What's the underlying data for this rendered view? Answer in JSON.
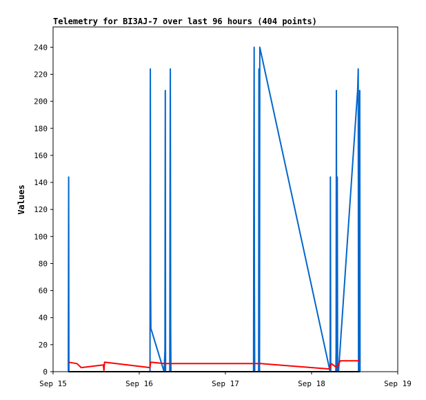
{
  "chart_data": {
    "type": "line",
    "title": "Telemetry for BI3AJ-7 over last 96 hours (404 points)",
    "xlabel": "",
    "ylabel": "Values",
    "xlim": [
      "2023-09-15T00:00",
      "2023-09-19T00:00"
    ],
    "ylim": [
      0,
      255
    ],
    "x_tick_labels": [
      "Sep 15",
      "Sep 16",
      "Sep 17",
      "Sep 18",
      "Sep 19"
    ],
    "y_ticks": [
      0,
      20,
      40,
      60,
      80,
      100,
      120,
      140,
      160,
      180,
      200,
      220,
      240
    ],
    "grid": false,
    "legend": false,
    "series": [
      {
        "color": "#0066cc",
        "points": [
          [
            "2023-09-15T04:15",
            0
          ],
          [
            "2023-09-15T04:20",
            144
          ],
          [
            "2023-09-15T04:25",
            0
          ],
          [
            "2023-09-16T03:00",
            0
          ],
          [
            "2023-09-16T03:05",
            224
          ],
          [
            "2023-09-16T03:10",
            64
          ],
          [
            "2023-09-16T03:15",
            32
          ],
          [
            "2023-09-16T06:55",
            0
          ],
          [
            "2023-09-16T07:10",
            16
          ],
          [
            "2023-09-16T07:15",
            208
          ],
          [
            "2023-09-16T07:20",
            0
          ],
          [
            "2023-09-16T08:30",
            0
          ],
          [
            "2023-09-16T08:35",
            128
          ],
          [
            "2023-09-16T08:40",
            224
          ],
          [
            "2023-09-16T08:45",
            32
          ],
          [
            "2023-09-16T08:50",
            0
          ],
          [
            "2023-09-17T07:50",
            0
          ],
          [
            "2023-09-17T07:55",
            128
          ],
          [
            "2023-09-17T08:00",
            240
          ],
          [
            "2023-09-17T08:05",
            64
          ],
          [
            "2023-09-17T08:10",
            0
          ],
          [
            "2023-09-17T09:15",
            0
          ],
          [
            "2023-09-17T09:20",
            224
          ],
          [
            "2023-09-17T09:25",
            0
          ],
          [
            "2023-09-17T09:30",
            0
          ],
          [
            "2023-09-17T09:35",
            240
          ],
          [
            "2023-09-18T05:10",
            0
          ],
          [
            "2023-09-18T05:15",
            144
          ],
          [
            "2023-09-18T05:20",
            0
          ],
          [
            "2023-09-18T06:45",
            0
          ],
          [
            "2023-09-18T06:50",
            16
          ],
          [
            "2023-09-18T06:55",
            208
          ],
          [
            "2023-09-18T07:00",
            0
          ],
          [
            "2023-09-18T07:10",
            144
          ],
          [
            "2023-09-18T07:15",
            0
          ],
          [
            "2023-09-18T07:30",
            0
          ],
          [
            "2023-09-18T12:50",
            208
          ],
          [
            "2023-09-18T13:00",
            224
          ],
          [
            "2023-09-18T13:05",
            0
          ],
          [
            "2023-09-18T13:10",
            176
          ],
          [
            "2023-09-18T13:15",
            0
          ],
          [
            "2023-09-18T13:25",
            208
          ],
          [
            "2023-09-18T13:30",
            0
          ]
        ]
      },
      {
        "color": "#ff0000",
        "points": [
          [
            "2023-09-15T04:20",
            7
          ],
          [
            "2023-09-15T06:40",
            6
          ],
          [
            "2023-09-15T07:50",
            3
          ],
          [
            "2023-09-15T14:00",
            5
          ],
          [
            "2023-09-15T14:10",
            1
          ],
          [
            "2023-09-15T14:20",
            7
          ],
          [
            "2023-09-16T03:00",
            3
          ],
          [
            "2023-09-16T03:10",
            7
          ],
          [
            "2023-09-16T07:00",
            6
          ],
          [
            "2023-09-16T08:00",
            6
          ],
          [
            "2023-09-17T08:00",
            6
          ],
          [
            "2023-09-17T10:00",
            6
          ],
          [
            "2023-09-18T05:00",
            2
          ],
          [
            "2023-09-18T05:30",
            6
          ],
          [
            "2023-09-18T07:00",
            3
          ],
          [
            "2023-09-18T08:00",
            8
          ],
          [
            "2023-09-18T13:30",
            8
          ]
        ]
      },
      {
        "color": "#000000",
        "points": [
          [
            "2023-09-15T04:15",
            0
          ],
          [
            "2023-09-18T13:30",
            0
          ]
        ]
      }
    ]
  }
}
